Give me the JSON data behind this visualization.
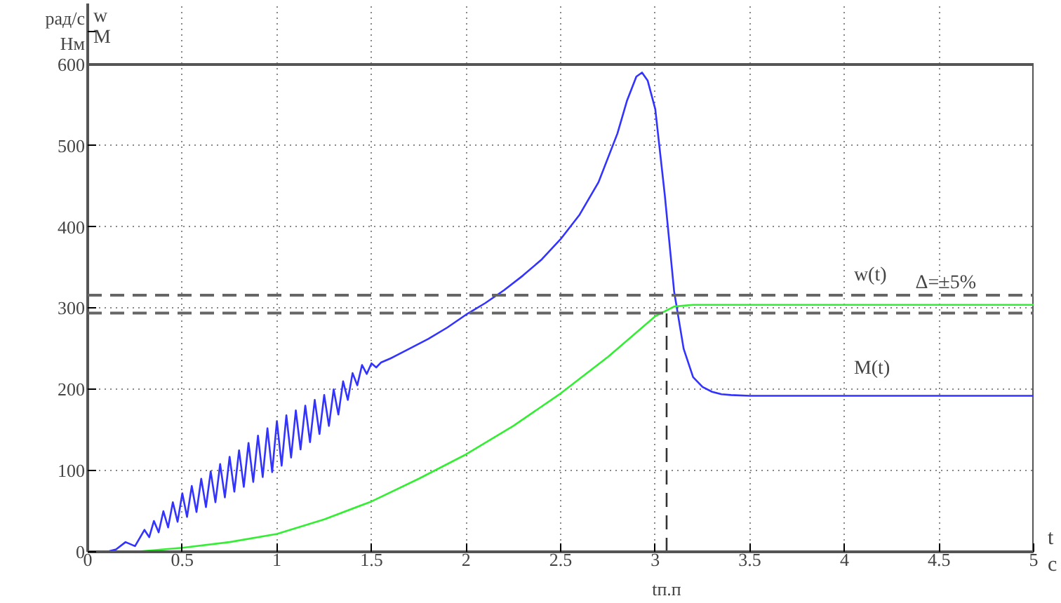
{
  "chart_data": {
    "type": "line",
    "xlabel": "t\nc",
    "ylabel": "w\nM",
    "xlim": [
      0,
      5
    ],
    "ylim": [
      0,
      675
    ],
    "xticks": [
      0,
      0.5,
      1,
      1.5,
      2,
      2.5,
      3,
      3.5,
      4,
      4.5,
      5
    ],
    "yticks": [
      0,
      100,
      200,
      300,
      400,
      500,
      600
    ],
    "grid": true,
    "line_style": "solid",
    "series": [
      {
        "color": "#3333ff",
        "x": [
          0,
          0.1,
          0.15,
          0.2,
          0.25,
          0.3,
          0.325,
          0.35,
          0.375,
          0.4,
          0.425,
          0.45,
          0.475,
          0.5,
          0.525,
          0.55,
          0.575,
          0.6,
          0.625,
          0.65,
          0.675,
          0.7,
          0.725,
          0.75,
          0.775,
          0.8,
          0.825,
          0.85,
          0.875,
          0.9,
          0.925,
          0.95,
          0.975,
          1.0,
          1.025,
          1.05,
          1.075,
          1.1,
          1.125,
          1.15,
          1.175,
          1.2,
          1.225,
          1.25,
          1.275,
          1.3,
          1.325,
          1.35,
          1.375,
          1.4,
          1.425,
          1.45,
          1.475,
          1.5,
          1.525,
          1.55,
          1.6,
          1.7,
          1.8,
          1.9,
          2.0,
          2.1,
          2.2,
          2.3,
          2.4,
          2.5,
          2.6,
          2.7,
          2.8,
          2.85,
          2.9,
          2.93,
          2.96,
          3.0,
          3.05,
          3.1,
          3.15,
          3.2,
          3.25,
          3.3,
          3.35,
          3.4,
          3.5,
          4.0,
          5.0
        ],
        "values": [
          0,
          0,
          3,
          12,
          7,
          27,
          18,
          38,
          24,
          50,
          30,
          61,
          37,
          72,
          43,
          81,
          49,
          90,
          55,
          99,
          61,
          108,
          67,
          117,
          74,
          125,
          80,
          134,
          86,
          143,
          92,
          152,
          98,
          161,
          106,
          168,
          116,
          174,
          126,
          180,
          135,
          187,
          145,
          193,
          155,
          200,
          169,
          210,
          187,
          220,
          205,
          230,
          219,
          232,
          227,
          233,
          238,
          250,
          262,
          276,
          292,
          306,
          322,
          340,
          360,
          385,
          415,
          455,
          515,
          555,
          585,
          590,
          580,
          545,
          440,
          320,
          250,
          215,
          203,
          197,
          194,
          193,
          192,
          192,
          192
        ]
      },
      {
        "color": "#33ee33",
        "x": [
          0,
          0.25,
          0.5,
          0.75,
          1.0,
          1.25,
          1.5,
          1.75,
          2.0,
          2.25,
          2.5,
          2.75,
          3.0,
          3.1,
          3.2,
          3.5,
          4.0,
          5.0
        ],
        "values": [
          0,
          0,
          5,
          12,
          22,
          40,
          62,
          90,
          120,
          155,
          195,
          240,
          290,
          302,
          304,
          304,
          304,
          304
        ]
      },
      {
        "color": "#333333",
        "line_style": "dashed",
        "x": [
          3.06,
          3.06
        ],
        "values": [
          0,
          300
        ]
      }
    ],
    "ref_lines": [
      {
        "axis": "y",
        "value": 600,
        "label": null,
        "color": "#555555",
        "line_style": "solid"
      },
      {
        "axis": "y",
        "value": 316,
        "label": null,
        "color": "#666666",
        "line_style": "dashed"
      },
      {
        "axis": "y",
        "value": 294,
        "label": null,
        "color": "#666666",
        "line_style": "dashed"
      }
    ],
    "annotations": [
      "рад/с\nНм",
      "w(t)",
      "M(t)",
      "Δ=±5%",
      {
        "text": "tп.п",
        "x": 3.06,
        "y": 0
      }
    ]
  }
}
